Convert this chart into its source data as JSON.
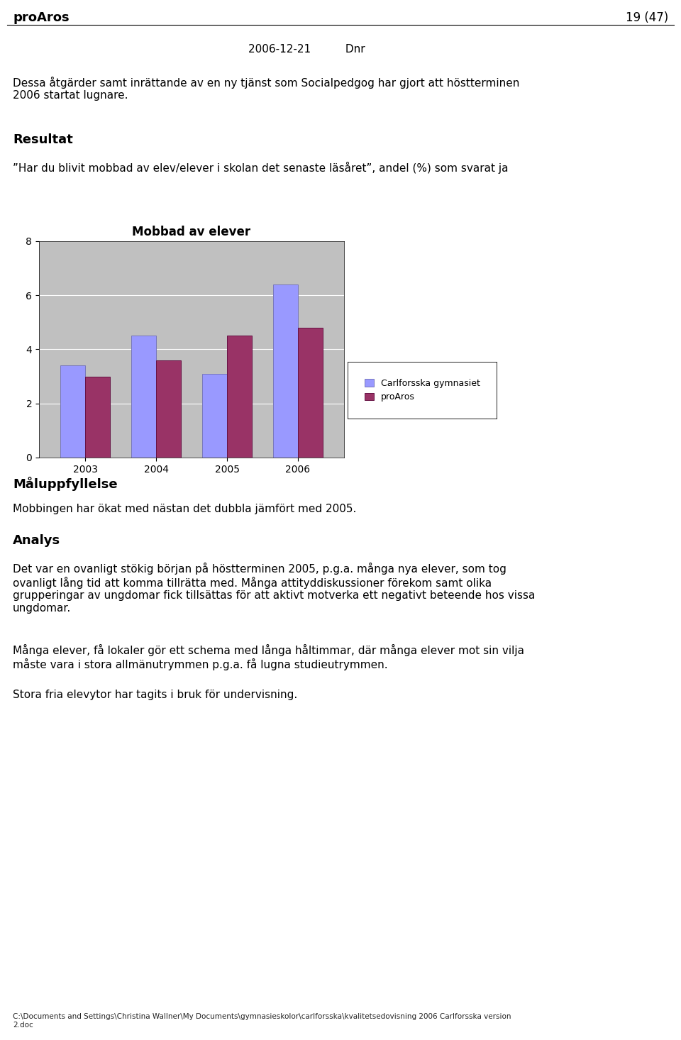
{
  "page_header_left": "proAros",
  "page_header_right": "19 (47)",
  "date_line": "2006-12-21          Dnr",
  "intro_text": "Dessa åtgärder samt inrättande av en ny tjänst som Socialpedgog har gjort att höstterminen\n2006 startat lugnare.",
  "section1_heading": "Resultat",
  "section1_text": "”Har du blivit mobbad av elev/elever i skolan det senaste läsåret”, andel (%) som svarat ja",
  "chart_title": "Mobbad av elever",
  "years": [
    2003,
    2004,
    2005,
    2006
  ],
  "carlforsska": [
    3.4,
    4.5,
    3.1,
    6.4
  ],
  "proaros": [
    3.0,
    3.6,
    4.5,
    4.8
  ],
  "bar_color_carlforsska": "#9999FF",
  "bar_color_proaros": "#993366",
  "legend_carlforsska": "Carlforsska gymnasiet",
  "legend_proaros": "proAros",
  "ylim": [
    0,
    8
  ],
  "yticks": [
    0,
    2,
    4,
    6,
    8
  ],
  "chart_bg": "#C0C0C0",
  "section2_heading": "Måluppfyllelse",
  "section2_text": "Mobbingen har ökat med nästan det dubbla jämfört med 2005.",
  "section3_heading": "Analys",
  "section3_text1": "Det var en ovanligt stökig början på höstterminen 2005, p.g.a. många nya elever, som tog\novanligt lång tid att komma tillrätta med. Många attityddiskussioner förekom samt olika\ngrupperingar av ungdomar fick tillsättas för att aktivt motverka ett negativt beteende hos vissa\nungdomar.",
  "section3_text2": "Många elever, få lokaler gör ett schema med långa håltimmar, där många elever mot sin vilja\nmåste vara i stora allmänutrymmen p.g.a. få lugna studieutrymmen.",
  "section3_text3": "Stora fria elevytor har tagits i bruk för undervisning.",
  "footer_text": "C:\\Documents and Settings\\Christina Wallner\\My Documents\\gymnasieskolor\\carlforsska\\kvalitetsedovisning 2006 Carlforsska version\n2.doc"
}
